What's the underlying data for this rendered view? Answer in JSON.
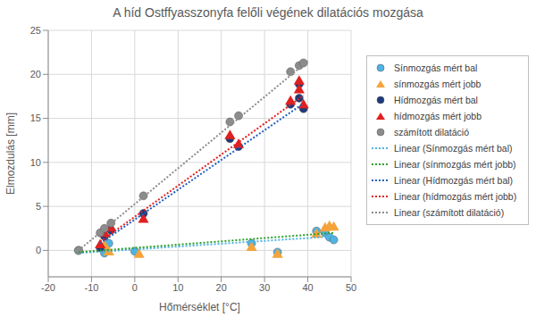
{
  "chart_data": {
    "type": "scatter",
    "title": "A híd Ostffyasszonyfa felőli végének dilatációs mozgása",
    "x_label": "Hőmérséklet [°C]",
    "y_label": "Elmozdulás [mm]",
    "xlim": [
      -20,
      50
    ],
    "xticks": [
      -20,
      -10,
      0,
      10,
      20,
      30,
      40,
      50
    ],
    "ylim": [
      -3,
      25
    ],
    "yticks": [
      0,
      5,
      10,
      15,
      20,
      25
    ],
    "grid": true,
    "legend": "right",
    "series": [
      {
        "name": "Sínmozgás mért bal",
        "type": "scatter",
        "marker": "circle",
        "color": "#4fb3e3",
        "x": [
          -13,
          -7,
          -6,
          0,
          27,
          33,
          42,
          44,
          45,
          46
        ],
        "values": [
          0,
          -0.3,
          0.8,
          -0.1,
          0.8,
          -0.2,
          2.2,
          2,
          1.5,
          1.2
        ]
      },
      {
        "name": "sínmozgás mért jobb",
        "type": "scatter",
        "marker": "triangle",
        "color": "#f5a33a",
        "x": [
          -7,
          -6,
          1,
          27,
          33,
          42,
          44,
          45,
          46
        ],
        "values": [
          0.5,
          -0.2,
          -0.5,
          0.3,
          -0.5,
          1.8,
          2.5,
          2.7,
          2.6
        ]
      },
      {
        "name": "Hídmozgás mért bal",
        "type": "scatter",
        "marker": "circle",
        "color": "#1f3a7a",
        "x": [
          -8,
          -7,
          -5.5,
          2,
          22,
          24,
          36,
          38,
          38,
          39
        ],
        "values": [
          0.3,
          1.6,
          2.3,
          4.2,
          12.7,
          11.8,
          16.6,
          17.3,
          18.9,
          16.1
        ]
      },
      {
        "name": "hídmozgás mért jobb",
        "type": "scatter",
        "marker": "triangle",
        "color": "#e02020",
        "x": [
          -8,
          -7,
          -5.5,
          2,
          22,
          24,
          36,
          38,
          38,
          39
        ],
        "values": [
          0.6,
          1.9,
          2.5,
          3.5,
          13,
          12,
          16.9,
          19.2,
          18.2,
          16.5
        ]
      },
      {
        "name": "számított dilatáció",
        "type": "scatter",
        "marker": "circle",
        "color": "#8c8c8c",
        "x": [
          -13,
          -8,
          -7,
          -5.5,
          2,
          22,
          24,
          36,
          38,
          39
        ],
        "values": [
          0,
          2,
          2.5,
          3.1,
          6.2,
          14.6,
          15.3,
          20.3,
          21,
          21.3
        ]
      },
      {
        "name": "Linear (Sínmozgás mért bal)",
        "type": "line",
        "line_style": "dotted",
        "color": "#4fb3e3",
        "x": [
          -13,
          46
        ],
        "values": [
          -0.3,
          1.6
        ]
      },
      {
        "name": "Linear (sínmozgás mért jobb)",
        "type": "line",
        "line_style": "dotted",
        "color": "#2ca02c",
        "x": [
          -13,
          46
        ],
        "values": [
          -0.2,
          2
        ]
      },
      {
        "name": "Linear (Hídmozgás mért bal)",
        "type": "line",
        "line_style": "dotted",
        "color": "#1f5fbf",
        "x": [
          -8,
          39
        ],
        "values": [
          0.8,
          16.7
        ]
      },
      {
        "name": "Linear (hídmozgás mért jobb)",
        "type": "line",
        "line_style": "dotted",
        "color": "#e02020",
        "x": [
          -8,
          39
        ],
        "values": [
          1,
          17.6
        ]
      },
      {
        "name": "Linear (számított dilatáció)",
        "type": "line",
        "line_style": "dotted",
        "color": "#8c8c8c",
        "x": [
          -13,
          40
        ],
        "values": [
          0,
          21.5
        ]
      }
    ]
  }
}
